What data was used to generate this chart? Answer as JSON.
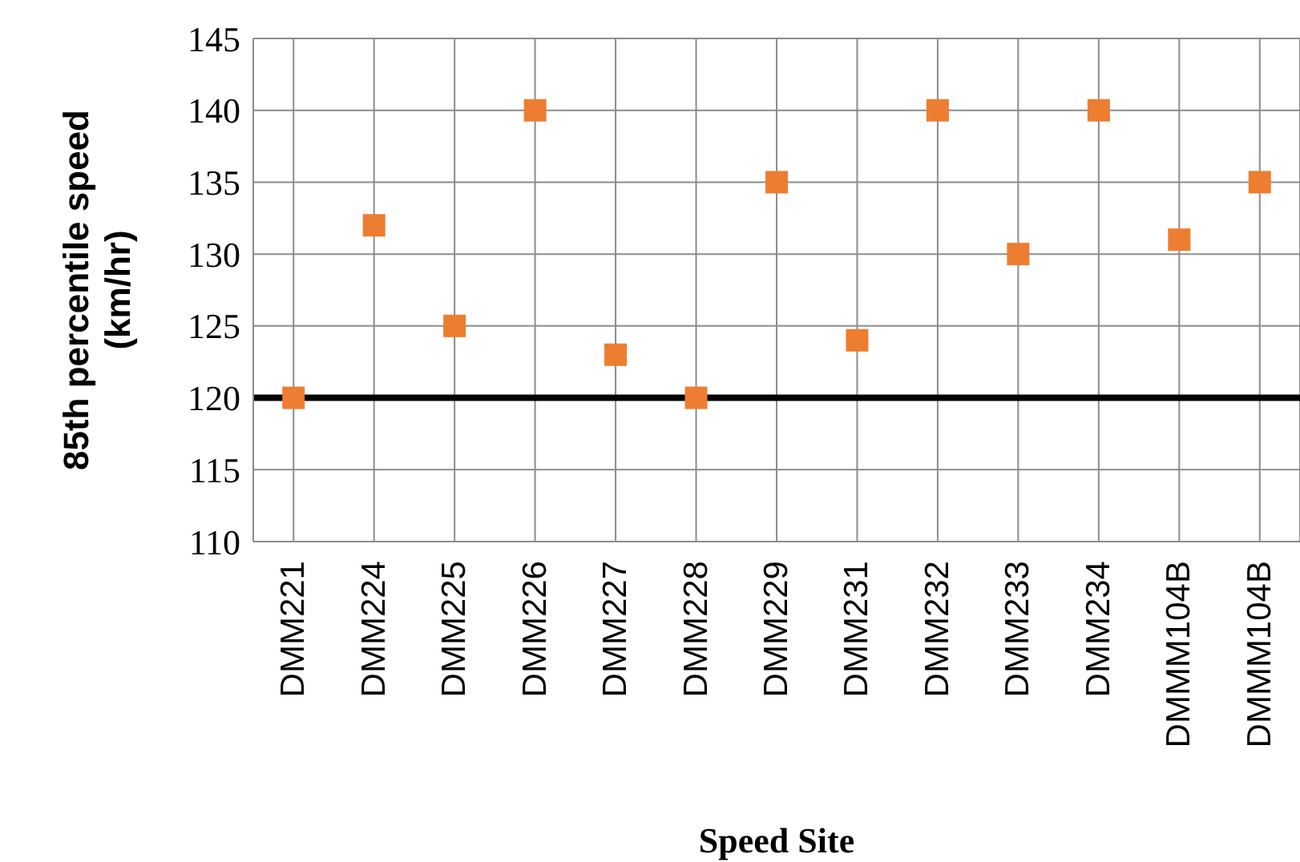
{
  "chart_data": {
    "type": "scatter",
    "xlabel": "Speed Site",
    "ylabel": "85th percentile speed (km/hr)",
    "categories": [
      "DMM221",
      "DMM224",
      "DMM225",
      "DMM226",
      "DMM227",
      "DMM228",
      "DMM229",
      "DMM231",
      "DMM232",
      "DMM233",
      "DMM234",
      "DMMM104B",
      "DMMM104B"
    ],
    "series": [
      {
        "color": "#ed7d31",
        "values": [
          120,
          132,
          125,
          140,
          123,
          120,
          135,
          124,
          140,
          130,
          140,
          131,
          135
        ]
      }
    ],
    "ylim": [
      110,
      145
    ],
    "yticks": [
      110,
      115,
      120,
      125,
      130,
      135,
      140,
      145
    ],
    "ref_lines": [
      {
        "axis": "y",
        "value": 120,
        "color": "#000000"
      }
    ],
    "grid": true,
    "legend": false,
    "marker": "square"
  }
}
